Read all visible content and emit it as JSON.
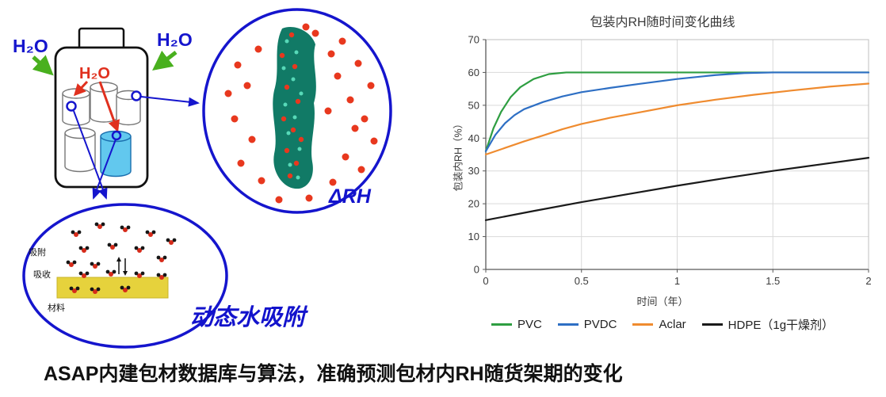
{
  "diagram": {
    "h2o_left": "H₂O",
    "h2o_right": "H₂O",
    "h2o_inner": "H₂O",
    "delta_rh": "ΔRH",
    "adsorb": "吸附",
    "absorb": "吸收",
    "material": "材料",
    "dynamic_sorption": "动态水吸附"
  },
  "chart_data": {
    "type": "line",
    "title": "包装内RH随时间变化曲线",
    "xlabel": "时间（年）",
    "ylabel": "包装内RH（%）",
    "xlim": [
      0,
      2
    ],
    "ylim": [
      0,
      70
    ],
    "xticks": [
      0,
      0.5,
      1,
      1.5,
      2
    ],
    "yticks": [
      0,
      10,
      20,
      30,
      40,
      50,
      60,
      70
    ],
    "grid": true,
    "legend_position": "bottom",
    "series": [
      {
        "name": "PVC",
        "color": "#2e9e41",
        "x": [
          0,
          0.04,
          0.08,
          0.13,
          0.18,
          0.25,
          0.33,
          0.42,
          0.6,
          1,
          1.5,
          2
        ],
        "y": [
          36,
          43,
          48,
          52.5,
          55.5,
          58,
          59.5,
          60,
          60,
          60,
          60,
          60
        ]
      },
      {
        "name": "PVDC",
        "color": "#2e6fc4",
        "x": [
          0,
          0.05,
          0.1,
          0.15,
          0.2,
          0.3,
          0.4,
          0.5,
          0.65,
          0.8,
          1,
          1.2,
          1.35,
          1.5,
          2
        ],
        "y": [
          36,
          41,
          44.5,
          47,
          48.8,
          51,
          52.7,
          54,
          55.3,
          56.5,
          58,
          59.2,
          59.8,
          60,
          60
        ]
      },
      {
        "name": "Aclar",
        "color": "#ef8b2f",
        "x": [
          0,
          0.1,
          0.2,
          0.3,
          0.4,
          0.5,
          0.65,
          0.8,
          1,
          1.2,
          1.4,
          1.6,
          1.8,
          2
        ],
        "y": [
          35,
          37,
          39,
          40.8,
          42.7,
          44.3,
          46.2,
          47.8,
          50,
          51.7,
          53.2,
          54.5,
          55.7,
          56.6
        ]
      },
      {
        "name": "HDPE（1g干燥剂）",
        "color": "#1a1a1a",
        "x": [
          0,
          0.25,
          0.5,
          0.75,
          1,
          1.25,
          1.5,
          1.75,
          2
        ],
        "y": [
          15,
          17.8,
          20.5,
          23,
          25.5,
          27.8,
          30,
          32,
          34
        ]
      }
    ]
  },
  "caption": "ASAP内建包材数据库与算法，准确预测包材内RH随货架期的变化"
}
